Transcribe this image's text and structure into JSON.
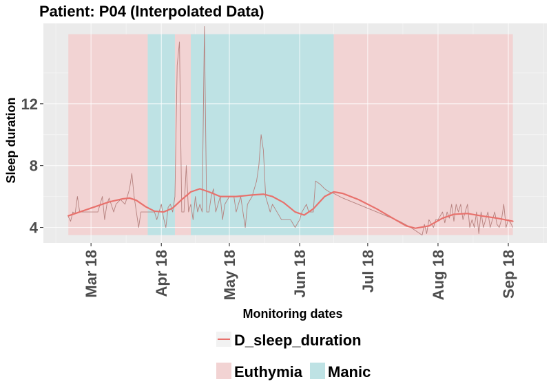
{
  "chart_data": {
    "type": "line",
    "title": "Patient: P04 (Interpolated Data)",
    "xlabel": "Monitoring dates",
    "ylabel": "Sleep duration",
    "x_range": [
      "2018-02-08",
      "2018-09-18"
    ],
    "ylim": [
      3.0,
      17.2
    ],
    "y_ticks": [
      4,
      8,
      12
    ],
    "x_ticks": [
      {
        "date": "2018-03-01",
        "label": "Mar 18"
      },
      {
        "date": "2018-04-01",
        "label": "Apr 18"
      },
      {
        "date": "2018-05-01",
        "label": "May 18"
      },
      {
        "date": "2018-06-01",
        "label": "Jun 18"
      },
      {
        "date": "2018-07-01",
        "label": "Jul 18"
      },
      {
        "date": "2018-08-01",
        "label": "Aug 18"
      },
      {
        "date": "2018-09-01",
        "label": "Sep 18"
      }
    ],
    "grid": true,
    "legend_position": "bottom",
    "state_band_y": [
      3.5,
      16.5
    ],
    "states": [
      {
        "label": "Euthymia",
        "start": "2018-02-19",
        "end": "2018-03-26"
      },
      {
        "label": "Manic",
        "start": "2018-03-26",
        "end": "2018-04-07"
      },
      {
        "label": "Euthymia",
        "start": "2018-04-07",
        "end": "2018-04-14"
      },
      {
        "label": "Manic",
        "start": "2018-04-14",
        "end": "2018-06-16"
      },
      {
        "label": "Euthymia",
        "start": "2018-06-16",
        "end": "2018-09-03"
      }
    ],
    "state_legend": [
      {
        "label": "Euthymia",
        "color": "#F2D3D3"
      },
      {
        "label": "Manic",
        "color": "#BEE2E4"
      }
    ],
    "series": [
      {
        "name": "D_sleep_duration",
        "color": "#E8716C",
        "raw": [
          [
            "2018-02-19",
            4.7
          ],
          [
            "2018-02-20",
            4.4
          ],
          [
            "2018-02-21",
            5.0
          ],
          [
            "2018-02-22",
            4.9
          ],
          [
            "2018-02-23",
            6.0
          ],
          [
            "2018-02-24",
            5.0
          ],
          [
            "2018-02-26",
            5.0
          ],
          [
            "2018-02-28",
            5.0
          ],
          [
            "2018-03-02",
            5.0
          ],
          [
            "2018-03-04",
            5.0
          ],
          [
            "2018-03-06",
            6.0
          ],
          [
            "2018-03-07",
            4.5
          ],
          [
            "2018-03-08",
            5.5
          ],
          [
            "2018-03-09",
            5.9
          ],
          [
            "2018-03-11",
            5.0
          ],
          [
            "2018-03-12",
            5.5
          ],
          [
            "2018-03-14",
            5.8
          ],
          [
            "2018-03-16",
            5.5
          ],
          [
            "2018-03-18",
            6.5
          ],
          [
            "2018-03-19",
            7.5
          ],
          [
            "2018-03-20",
            6.0
          ],
          [
            "2018-03-22",
            4.0
          ],
          [
            "2018-03-23",
            5.0
          ],
          [
            "2018-03-25",
            5.0
          ],
          [
            "2018-03-27",
            5.0
          ],
          [
            "2018-03-29",
            5.0
          ],
          [
            "2018-03-30",
            4.5
          ],
          [
            "2018-04-01",
            5.5
          ],
          [
            "2018-04-02",
            4.6
          ],
          [
            "2018-04-03",
            4.0
          ],
          [
            "2018-04-04",
            5.3
          ],
          [
            "2018-04-05",
            5.5
          ],
          [
            "2018-04-06",
            5.0
          ],
          [
            "2018-04-07",
            6.0
          ],
          [
            "2018-04-08",
            14.5
          ],
          [
            "2018-04-09",
            16.0
          ],
          [
            "2018-04-10",
            5.0
          ],
          [
            "2018-04-11",
            5.0
          ],
          [
            "2018-04-12",
            8.0
          ],
          [
            "2018-04-13",
            5.0
          ],
          [
            "2018-04-14",
            5.5
          ],
          [
            "2018-04-15",
            4.5
          ],
          [
            "2018-04-16",
            6.0
          ],
          [
            "2018-04-17",
            5.0
          ],
          [
            "2018-04-18",
            5.5
          ],
          [
            "2018-04-19",
            5.0
          ],
          [
            "2018-04-20",
            17.0
          ],
          [
            "2018-04-21",
            5.0
          ],
          [
            "2018-04-22",
            5.0
          ],
          [
            "2018-04-23",
            6.0
          ],
          [
            "2018-04-24",
            6.5
          ],
          [
            "2018-04-25",
            5.0
          ],
          [
            "2018-04-27",
            6.0
          ],
          [
            "2018-04-28",
            4.5
          ],
          [
            "2018-04-29",
            5.5
          ],
          [
            "2018-05-01",
            6.0
          ],
          [
            "2018-05-03",
            6.0
          ],
          [
            "2018-05-04",
            5.0
          ],
          [
            "2018-05-06",
            6.0
          ],
          [
            "2018-05-08",
            4.0
          ],
          [
            "2018-05-09",
            5.5
          ],
          [
            "2018-05-11",
            6.0
          ],
          [
            "2018-05-13",
            7.0
          ],
          [
            "2018-05-14",
            8.0
          ],
          [
            "2018-05-15",
            10.0
          ],
          [
            "2018-05-16",
            9.0
          ],
          [
            "2018-05-17",
            6.0
          ],
          [
            "2018-05-19",
            5.0
          ],
          [
            "2018-05-20",
            5.5
          ],
          [
            "2018-05-22",
            5.0
          ],
          [
            "2018-05-24",
            4.5
          ],
          [
            "2018-05-26",
            4.5
          ],
          [
            "2018-05-28",
            4.5
          ],
          [
            "2018-05-30",
            4.0
          ],
          [
            "2018-06-01",
            4.5
          ],
          [
            "2018-06-02",
            5.0
          ],
          [
            "2018-06-04",
            5.5
          ],
          [
            "2018-06-05",
            5.0
          ],
          [
            "2018-06-07",
            5.0
          ],
          [
            "2018-06-08",
            7.0
          ],
          [
            "2018-06-10",
            6.8
          ],
          [
            "2018-06-12",
            6.5
          ],
          [
            "2018-06-14",
            6.3
          ],
          [
            "2018-06-16",
            6.2
          ],
          [
            "2018-06-20",
            5.9
          ],
          [
            "2018-06-25",
            5.6
          ],
          [
            "2018-06-30",
            5.3
          ],
          [
            "2018-07-05",
            5.0
          ],
          [
            "2018-07-10",
            4.7
          ],
          [
            "2018-07-15",
            4.4
          ],
          [
            "2018-07-20",
            4.0
          ],
          [
            "2018-07-22",
            3.8
          ],
          [
            "2018-07-24",
            3.6
          ],
          [
            "2018-07-25",
            3.5
          ],
          [
            "2018-07-26",
            4.2
          ],
          [
            "2018-07-27",
            3.6
          ],
          [
            "2018-07-28",
            4.5
          ],
          [
            "2018-07-30",
            4.0
          ],
          [
            "2018-07-31",
            4.5
          ],
          [
            "2018-08-01",
            4.5
          ],
          [
            "2018-08-03",
            5.0
          ],
          [
            "2018-08-04",
            4.3
          ],
          [
            "2018-08-05",
            5.0
          ],
          [
            "2018-08-06",
            4.6
          ],
          [
            "2018-08-07",
            5.5
          ],
          [
            "2018-08-08",
            4.4
          ],
          [
            "2018-08-09",
            5.5
          ],
          [
            "2018-08-10",
            5.0
          ],
          [
            "2018-08-11",
            5.5
          ],
          [
            "2018-08-12",
            4.5
          ],
          [
            "2018-08-13",
            5.0
          ],
          [
            "2018-08-14",
            5.5
          ],
          [
            "2018-08-15",
            4.0
          ],
          [
            "2018-08-16",
            4.5
          ],
          [
            "2018-08-17",
            4.0
          ],
          [
            "2018-08-18",
            5.0
          ],
          [
            "2018-08-19",
            3.6
          ],
          [
            "2018-08-20",
            5.0
          ],
          [
            "2018-08-21",
            4.0
          ],
          [
            "2018-08-22",
            4.5
          ],
          [
            "2018-08-23",
            5.0
          ],
          [
            "2018-08-24",
            4.0
          ],
          [
            "2018-08-25",
            4.5
          ],
          [
            "2018-08-26",
            5.0
          ],
          [
            "2018-08-27",
            4.2
          ],
          [
            "2018-08-28",
            4.0
          ],
          [
            "2018-08-29",
            4.5
          ],
          [
            "2018-08-30",
            5.5
          ],
          [
            "2018-08-31",
            4.0
          ],
          [
            "2018-09-01",
            4.5
          ],
          [
            "2018-09-02",
            4.3
          ],
          [
            "2018-09-03",
            4.0
          ]
        ],
        "smooth": [
          [
            "2018-02-19",
            4.75
          ],
          [
            "2018-02-25",
            5.05
          ],
          [
            "2018-03-03",
            5.35
          ],
          [
            "2018-03-09",
            5.65
          ],
          [
            "2018-03-15",
            5.85
          ],
          [
            "2018-03-18",
            5.9
          ],
          [
            "2018-03-21",
            5.75
          ],
          [
            "2018-03-25",
            5.35
          ],
          [
            "2018-03-29",
            5.05
          ],
          [
            "2018-04-02",
            5.0
          ],
          [
            "2018-04-06",
            5.25
          ],
          [
            "2018-04-10",
            5.8
          ],
          [
            "2018-04-14",
            6.3
          ],
          [
            "2018-04-18",
            6.5
          ],
          [
            "2018-04-22",
            6.3
          ],
          [
            "2018-04-27",
            6.0
          ],
          [
            "2018-05-04",
            6.0
          ],
          [
            "2018-05-11",
            6.1
          ],
          [
            "2018-05-16",
            6.15
          ],
          [
            "2018-05-20",
            6.0
          ],
          [
            "2018-05-25",
            5.6
          ],
          [
            "2018-05-30",
            5.0
          ],
          [
            "2018-06-03",
            4.8
          ],
          [
            "2018-06-07",
            5.2
          ],
          [
            "2018-06-12",
            6.0
          ],
          [
            "2018-06-16",
            6.3
          ],
          [
            "2018-06-20",
            6.2
          ],
          [
            "2018-06-27",
            5.8
          ],
          [
            "2018-07-05",
            5.2
          ],
          [
            "2018-07-12",
            4.6
          ],
          [
            "2018-07-18",
            4.1
          ],
          [
            "2018-07-22",
            3.95
          ],
          [
            "2018-07-28",
            4.1
          ],
          [
            "2018-08-03",
            4.6
          ],
          [
            "2018-08-08",
            4.85
          ],
          [
            "2018-08-14",
            4.9
          ],
          [
            "2018-08-20",
            4.75
          ],
          [
            "2018-08-27",
            4.6
          ],
          [
            "2018-09-03",
            4.4
          ]
        ]
      }
    ]
  }
}
